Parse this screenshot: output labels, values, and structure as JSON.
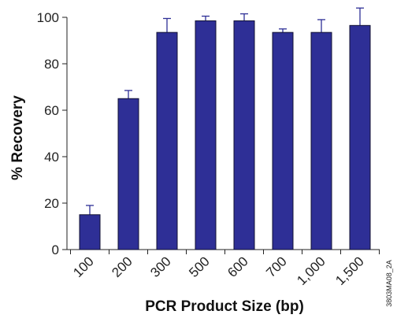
{
  "chart_data": {
    "type": "bar",
    "title": "",
    "xlabel": "PCR Product Size (bp)",
    "ylabel": "% Recovery",
    "categories": [
      "100",
      "200",
      "300",
      "500",
      "600",
      "700",
      "1,000",
      "1,500"
    ],
    "values": [
      15,
      65,
      93.5,
      98.5,
      98.5,
      93.5,
      93.5,
      96.5
    ],
    "errors": [
      4,
      3.5,
      6,
      2,
      3,
      1.5,
      5.5,
      7.5
    ],
    "ylim": [
      0,
      100
    ],
    "yticks": [
      0,
      20,
      40,
      60,
      80,
      100
    ],
    "grid": false,
    "legend": "none",
    "bar_color": "#2e2f96",
    "bar_outline_color": "#111133",
    "error_bar_color": "#2e2f96"
  },
  "figure_code": "3803MA08_2A"
}
